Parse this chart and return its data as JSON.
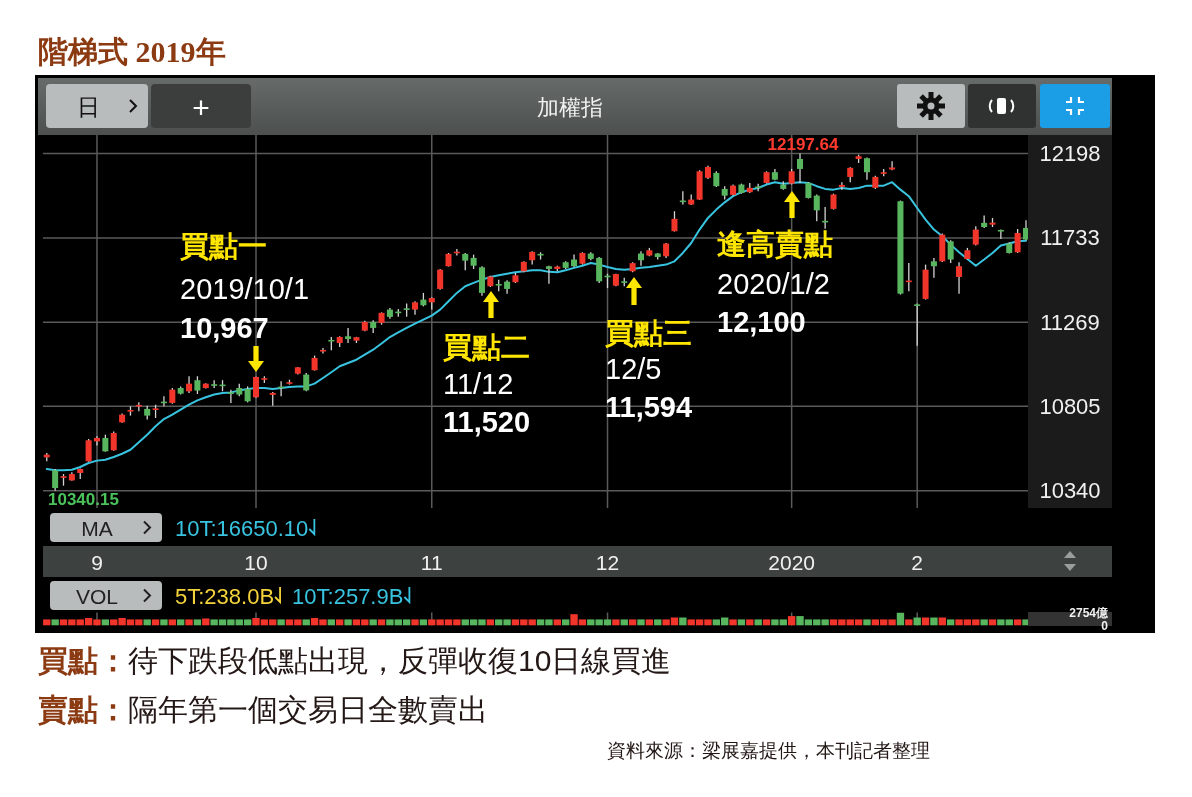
{
  "chart_data": [
    {
      "type": "candlestick",
      "title": "階梯式 2019年",
      "subtitle": "加權指",
      "categories": [
        null,
        null,
        null,
        null,
        null,
        null,
        "9",
        null,
        null,
        null,
        null,
        null,
        null,
        null,
        null,
        null,
        null,
        null,
        null,
        null,
        null,
        null,
        null,
        null,
        null,
        "10",
        null,
        null,
        null,
        null,
        null,
        null,
        null,
        null,
        null,
        null,
        null,
        null,
        null,
        null,
        null,
        null,
        null,
        null,
        null,
        null,
        "11",
        null,
        null,
        null,
        null,
        null,
        null,
        null,
        null,
        null,
        null,
        null,
        null,
        null,
        null,
        null,
        null,
        null,
        null,
        null,
        null,
        "12",
        null,
        null,
        null,
        null,
        null,
        null,
        null,
        null,
        null,
        null,
        null,
        null,
        null,
        null,
        null,
        null,
        null,
        null,
        null,
        null,
        null,
        "2020",
        null,
        null,
        null,
        null,
        null,
        null,
        null,
        null,
        null,
        null,
        null,
        null,
        null,
        null,
        "2",
        null,
        null,
        null,
        null,
        null,
        null,
        null,
        null,
        null,
        null,
        null,
        null,
        null
      ],
      "ohlc": [
        [
          10524,
          10548,
          10502,
          10539
        ],
        [
          10453,
          10460,
          10340.15,
          10355
        ],
        [
          10416,
          10432,
          10368,
          10420
        ],
        [
          10397,
          10442,
          10395,
          10432
        ],
        [
          10438,
          10462,
          10405,
          10460
        ],
        [
          10502,
          10625,
          10500,
          10618
        ],
        [
          10612,
          10640,
          10589,
          10631
        ],
        [
          10631,
          10649,
          10555,
          10557
        ],
        [
          10563,
          10667,
          10560,
          10658
        ],
        [
          10717,
          10765,
          10715,
          10759
        ],
        [
          10778,
          10805,
          10754,
          10785
        ],
        [
          10805,
          10827,
          10778,
          10813
        ],
        [
          10791,
          10809,
          10732,
          10754
        ],
        [
          10787,
          10814,
          10741,
          10794
        ],
        [
          10831,
          10860,
          10805,
          10824
        ],
        [
          10824,
          10906,
          10820,
          10897
        ],
        [
          10906,
          10915,
          10870,
          10875
        ],
        [
          10888,
          10971,
          10879,
          10930
        ],
        [
          10949,
          10971,
          10873,
          10892
        ],
        [
          10906,
          10932,
          10904,
          10930
        ],
        [
          10927,
          10949,
          10906,
          10919
        ],
        [
          10925,
          10949,
          10888,
          10921
        ],
        [
          10882,
          10897,
          10824,
          10879
        ],
        [
          10906,
          10930,
          10860,
          10870
        ],
        [
          10901,
          10915,
          10827,
          10833
        ],
        [
          10855,
          10969,
          10851,
          10967
        ],
        [
          10952,
          10971,
          10934,
          10960
        ],
        [
          10868,
          10884,
          10809,
          10879
        ],
        [
          10914,
          10943,
          10860,
          10906
        ],
        [
          10930,
          10952,
          10925,
          10938
        ],
        [
          10985,
          11022,
          10980,
          11020
        ],
        [
          10980,
          10989,
          10888,
          10893
        ],
        [
          11004,
          11085,
          11002,
          11072
        ],
        [
          11108,
          11127,
          11096,
          11116
        ],
        [
          11171,
          11187,
          11114,
          11167
        ],
        [
          11154,
          11191,
          11132,
          11187
        ],
        [
          11191,
          11237,
          11154,
          11176
        ],
        [
          11167,
          11188,
          11154,
          11186
        ],
        [
          11222,
          11277,
          11219,
          11270
        ],
        [
          11270,
          11279,
          11209,
          11237
        ],
        [
          11265,
          11323,
          11255,
          11320
        ],
        [
          11338,
          11347,
          11287,
          11298
        ],
        [
          11327,
          11342,
          11298,
          11320
        ],
        [
          11345,
          11371,
          11298,
          11338
        ],
        [
          11338,
          11384,
          11310,
          11378
        ],
        [
          11393,
          11430,
          11356,
          11362
        ],
        [
          11378,
          11406,
          11338,
          11402
        ],
        [
          11452,
          11562,
          11448,
          11558
        ],
        [
          11577,
          11650,
          11575,
          11645
        ],
        [
          11650,
          11672,
          11636,
          11657
        ],
        [
          11645,
          11650,
          11555,
          11608
        ],
        [
          11623,
          11641,
          11562,
          11580
        ],
        [
          11571,
          11577,
          11415,
          11430
        ],
        [
          11467,
          11525,
          11463,
          11520
        ],
        [
          11479,
          11503,
          11439,
          11472
        ],
        [
          11492,
          11500,
          11426,
          11452
        ],
        [
          11489,
          11540,
          11485,
          11527
        ],
        [
          11549,
          11604,
          11544,
          11601
        ],
        [
          11610,
          11659,
          11586,
          11656
        ],
        [
          11645,
          11654,
          11614,
          11637
        ],
        [
          11577,
          11580,
          11481,
          11562
        ],
        [
          11562,
          11580,
          11549,
          11575
        ],
        [
          11599,
          11604,
          11562,
          11568
        ],
        [
          11614,
          11641,
          11573,
          11577
        ],
        [
          11591,
          11654,
          11586,
          11650
        ],
        [
          11647,
          11654,
          11610,
          11617
        ],
        [
          11623,
          11628,
          11485,
          11494
        ],
        [
          11525,
          11536,
          11457,
          11518
        ],
        [
          11470,
          11536,
          11467,
          11534
        ],
        [
          11494,
          11513,
          11467,
          11490
        ],
        [
          11549,
          11599,
          11544,
          11594
        ],
        [
          11647,
          11659,
          11580,
          11610
        ],
        [
          11636,
          11678,
          11632,
          11665
        ],
        [
          11647,
          11650,
          11614,
          11628
        ],
        [
          11632,
          11705,
          11623,
          11702
        ],
        [
          11770,
          11880,
          11768,
          11838
        ],
        [
          11939,
          11990,
          11917,
          11931
        ],
        [
          11917,
          11972,
          11915,
          11944
        ],
        [
          11944,
          12106,
          11942,
          12100
        ],
        [
          12064,
          12131,
          12058,
          12124
        ],
        [
          12091,
          12100,
          12014,
          12018
        ],
        [
          12003,
          12018,
          11944,
          11966
        ],
        [
          11970,
          12027,
          11966,
          12021
        ],
        [
          12027,
          12032,
          11977,
          11981
        ],
        [
          11985,
          12036,
          11981,
          12009
        ],
        [
          12016,
          12032,
          11990,
          12012
        ],
        [
          12036,
          12100,
          12032,
          12095
        ],
        [
          12095,
          12113,
          12051,
          12054
        ],
        [
          12027,
          12045,
          11999,
          12003
        ],
        [
          12032,
          12113,
          12027,
          12100
        ],
        [
          12168,
          12197.64,
          12036,
          12113
        ],
        [
          12036,
          12040,
          11950,
          11953
        ],
        [
          11966,
          11972,
          11825,
          11885
        ],
        [
          11827,
          11904,
          11783,
          11821
        ],
        [
          11893,
          11977,
          11889,
          11972
        ],
        [
          12014,
          12040,
          11999,
          12025
        ],
        [
          12069,
          12122,
          12040,
          12119
        ],
        [
          12168,
          12192,
          12146,
          12183
        ],
        [
          12172,
          12176,
          12054,
          12095
        ],
        [
          12009,
          12076,
          12003,
          12069
        ],
        [
          12086,
          12113,
          12073,
          12095
        ],
        [
          12110,
          12155,
          12106,
          12121
        ],
        [
          11935,
          11939,
          11421,
          11426
        ],
        [
          11492,
          11595,
          11439,
          11498
        ],
        [
          11367,
          11371,
          11139,
          11362
        ],
        [
          11397,
          11586,
          11393,
          11558
        ],
        [
          11604,
          11623,
          11513,
          11577
        ],
        [
          11604,
          11757,
          11600,
          11751
        ],
        [
          11714,
          11720,
          11595,
          11614
        ],
        [
          11518,
          11599,
          11426,
          11577
        ],
        [
          11617,
          11678,
          11614,
          11665
        ],
        [
          11696,
          11797,
          11691,
          11779
        ],
        [
          11816,
          11856,
          11788,
          11793
        ],
        [
          11806,
          11843,
          11793,
          11817
        ],
        [
          11777,
          11779,
          11727,
          11772
        ],
        [
          11702,
          11709,
          11647,
          11650
        ],
        [
          11654,
          11782,
          11650,
          11760
        ],
        [
          11788,
          11830,
          11720,
          11724
        ]
      ],
      "series": [
        {
          "name": "10T:16650.10",
          "type": "line",
          "color": "#38c4e0",
          "values": [
            10460,
            10453,
            10453,
            10456,
            10471,
            10493,
            10506,
            10511,
            10526,
            10544,
            10566,
            10607,
            10649,
            10695,
            10735,
            10759,
            10787,
            10814,
            10838,
            10855,
            10870,
            10879,
            10882,
            10892,
            10901,
            10906,
            10906,
            10901,
            10906,
            10912,
            10915,
            10915,
            10930,
            10961,
            10993,
            11026,
            11044,
            11062,
            11090,
            11117,
            11151,
            11187,
            11213,
            11237,
            11261,
            11283,
            11305,
            11338,
            11384,
            11430,
            11467,
            11485,
            11503,
            11518,
            11527,
            11536,
            11544,
            11549,
            11555,
            11555,
            11546,
            11544,
            11555,
            11568,
            11580,
            11595,
            11586,
            11573,
            11562,
            11558,
            11562,
            11568,
            11573,
            11580,
            11586,
            11604,
            11650,
            11705,
            11779,
            11843,
            11889,
            11929,
            11963,
            11985,
            11999,
            12008,
            12027,
            12040,
            12032,
            12036,
            12040,
            12036,
            12018,
            12003,
            11999,
            12008,
            12003,
            12008,
            12021,
            12021,
            12021,
            12040,
            11999,
            11963,
            11898,
            11834,
            11779,
            11742,
            11696,
            11654,
            11617,
            11580,
            11614,
            11650,
            11691,
            11702,
            11715,
            11718
          ]
        }
      ],
      "ylim": [
        10245,
        12300
      ],
      "yticks": [
        10340,
        10805,
        11269,
        11733,
        12198
      ],
      "grid": true,
      "legend": "bottom",
      "annotations": [
        "買點一\n2019/10/1\n10,967",
        "買點二\n11/12\n11,520",
        "買點三\n12/5\n11,594",
        "逢高賣點\n2020/1/2\n12,100",
        "12197.64",
        "10340.15",
        "日",
        "+",
        "MA",
        "買點：待下跌段低點出現，反彈收復10日線買進",
        "賣點：隔年第一個交易日全數賣出",
        "資料來源：梁展嘉提供，本刊記者整理"
      ]
    },
    {
      "type": "bar",
      "categories": [
        null,
        null,
        null,
        null,
        null,
        null,
        "9",
        null,
        null,
        null,
        null,
        null,
        null,
        null,
        null,
        null,
        null,
        null,
        null,
        null,
        null,
        null,
        null,
        null,
        null,
        "10",
        null,
        null,
        null,
        null,
        null,
        null,
        null,
        null,
        null,
        null,
        null,
        null,
        null,
        null,
        null,
        null,
        null,
        null,
        null,
        null,
        "11",
        null,
        null,
        null,
        null,
        null,
        null,
        null,
        null,
        null,
        null,
        null,
        null,
        null,
        null,
        null,
        null,
        null,
        null,
        null,
        null,
        "12",
        null,
        null,
        null,
        null,
        null,
        null,
        null,
        null,
        null,
        null,
        null,
        null,
        null,
        null,
        null,
        null,
        null,
        null,
        null,
        null,
        null,
        "2020",
        null,
        null,
        null,
        null,
        null,
        null,
        null,
        null,
        null,
        null,
        null,
        null,
        null,
        null,
        "2",
        null,
        null,
        null,
        null,
        null,
        null,
        null,
        null,
        null,
        null,
        null,
        null,
        null
      ],
      "values": [
        1300,
        1300,
        1300,
        1300,
        1300,
        1600,
        1300,
        1300,
        1300,
        1600,
        1300,
        1300,
        1300,
        1300,
        1300,
        1300,
        1300,
        1300,
        1300,
        1500,
        1300,
        1300,
        1300,
        1300,
        1300,
        1600,
        1300,
        1300,
        1300,
        1300,
        1300,
        1300,
        1600,
        1300,
        1300,
        1300,
        1300,
        1300,
        1300,
        1300,
        1300,
        1300,
        1300,
        1300,
        1300,
        1300,
        1300,
        1300,
        1300,
        1300,
        1300,
        1300,
        1300,
        1300,
        1300,
        1300,
        1300,
        1300,
        1300,
        1300,
        1300,
        1300,
        1300,
        2400,
        1300,
        1300,
        1300,
        1300,
        1300,
        1300,
        1300,
        1300,
        1300,
        1300,
        1300,
        1700,
        1700,
        1300,
        1300,
        1300,
        1300,
        1700,
        1300,
        1300,
        1300,
        1300,
        1300,
        1300,
        1300,
        2000,
        2000,
        1300,
        1300,
        1300,
        1300,
        1300,
        1300,
        1300,
        1300,
        1300,
        1300,
        1300,
        2754,
        1300,
        1700,
        1700,
        1700,
        1700,
        1300,
        1300,
        1300,
        1300,
        1300,
        1300,
        1300,
        1300,
        1300,
        1300
      ],
      "colors": [
        "#f2352b",
        "#58b65e",
        "#f2352b",
        "#f2352b",
        "#f2352b",
        "#f2352b",
        "#f2352b",
        "#58b65e",
        "#f2352b",
        "#f2352b",
        "#f2352b",
        "#f2352b",
        "#58b65e",
        "#f2352b",
        "#58b65e",
        "#f2352b",
        "#58b65e",
        "#f2352b",
        "#58b65e",
        "#f2352b",
        "#58b65e",
        "#58b65e",
        "#58b65e",
        "#58b65e",
        "#58b65e",
        "#f2352b",
        "#f2352b",
        "#f2352b",
        "#58b65e",
        "#f2352b",
        "#f2352b",
        "#58b65e",
        "#f2352b",
        "#f2352b",
        "#58b65e",
        "#f2352b",
        "#58b65e",
        "#f2352b",
        "#f2352b",
        "#58b65e",
        "#f2352b",
        "#58b65e",
        "#58b65e",
        "#58b65e",
        "#f2352b",
        "#58b65e",
        "#f2352b",
        "#f2352b",
        "#f2352b",
        "#f2352b",
        "#58b65e",
        "#58b65e",
        "#58b65e",
        "#f2352b",
        "#58b65e",
        "#58b65e",
        "#f2352b",
        "#f2352b",
        "#f2352b",
        "#58b65e",
        "#58b65e",
        "#f2352b",
        "#58b65e",
        "#f2352b",
        "#f2352b",
        "#58b65e",
        "#58b65e",
        "#58b65e",
        "#f2352b",
        "#58b65e",
        "#f2352b",
        "#58b65e",
        "#f2352b",
        "#58b65e",
        "#f2352b",
        "#f2352b",
        "#58b65e",
        "#f2352b",
        "#f2352b",
        "#f2352b",
        "#58b65e",
        "#58b65e",
        "#f2352b",
        "#58b65e",
        "#f2352b",
        "#58b65e",
        "#f2352b",
        "#58b65e",
        "#58b65e",
        "#f2352b",
        "#58b65e",
        "#58b65e",
        "#58b65e",
        "#58b65e",
        "#f2352b",
        "#f2352b",
        "#f2352b",
        "#f2352b",
        "#58b65e",
        "#f2352b",
        "#f2352b",
        "#f2352b",
        "#58b65e",
        "#f2352b",
        "#58b65e",
        "#f2352b",
        "#58b65e",
        "#f2352b",
        "#58b65e",
        "#f2352b",
        "#f2352b",
        "#f2352b",
        "#58b65e",
        "#f2352b",
        "#58b65e",
        "#58b65e",
        "#f2352b",
        "#58b65e"
      ],
      "ylim": [
        0,
        2754
      ],
      "yticks": [
        0,
        {
          "value": 2754,
          "label": "2754億"
        }
      ],
      "grid": "x",
      "tick_labels": "y",
      "annotations": [
        "VOL",
        "5T:238.0B",
        "10T:257.9B"
      ]
    }
  ]
}
